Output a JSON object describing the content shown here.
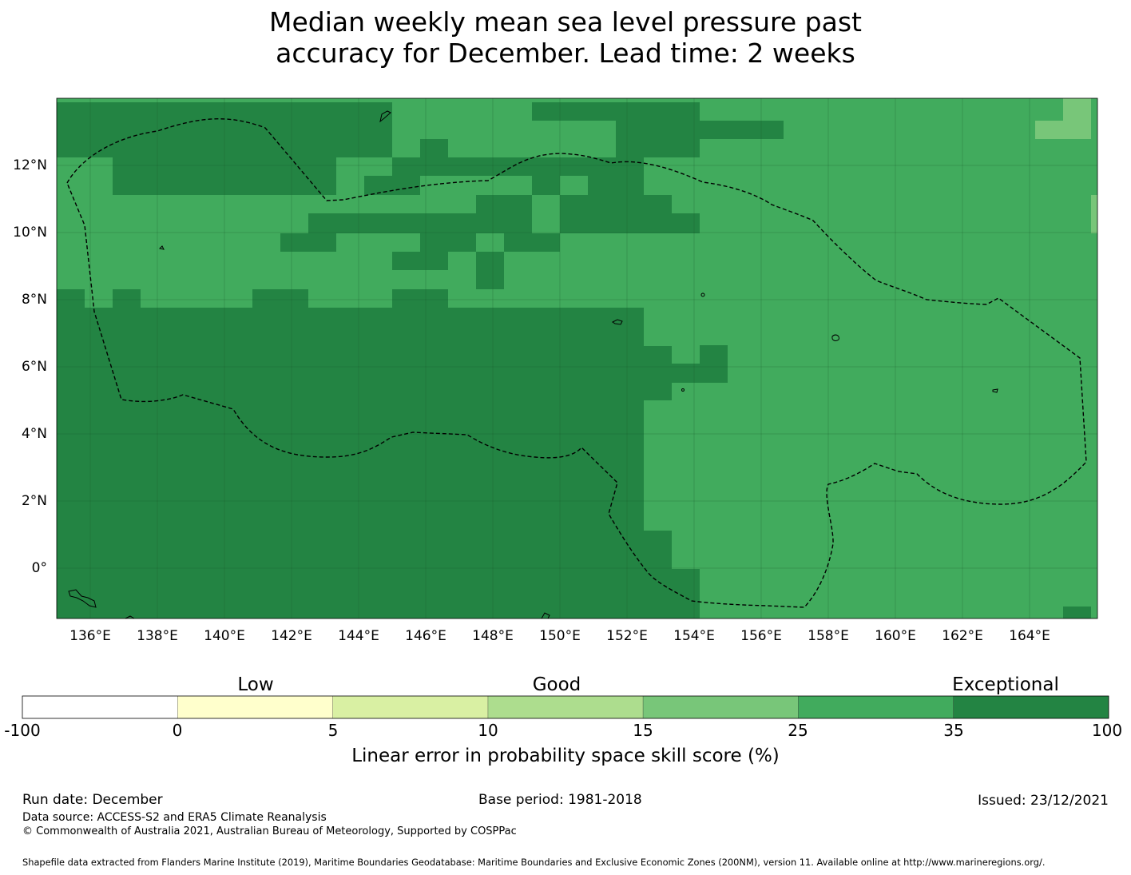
{
  "title_line1": "Median weekly mean sea level pressure past",
  "title_line2": "accuracy for December. Lead time: 2 weeks",
  "map": {
    "lon_range": [
      135,
      166
    ],
    "lat_range": [
      -1.5,
      14
    ],
    "lon_ticks": [
      "136°E",
      "138°E",
      "140°E",
      "142°E",
      "144°E",
      "146°E",
      "148°E",
      "150°E",
      "152°E",
      "154°E",
      "156°E",
      "158°E",
      "160°E",
      "162°E",
      "164°E"
    ],
    "lat_ticks": [
      "12°N",
      "10°N",
      "8°N",
      "6°N",
      "4°N",
      "2°N",
      "0°"
    ],
    "colors": {
      "exceptional": "#238443",
      "good_high": "#41ab5d",
      "good_mid": "#78c679"
    }
  },
  "colorbar": {
    "categories": [
      "Low",
      "Good",
      "Exceptional"
    ],
    "ticks": [
      "-100",
      "0",
      "5",
      "10",
      "15",
      "25",
      "35",
      "100"
    ],
    "colors": [
      "#ffffff",
      "#ffffcc",
      "#d9f0a3",
      "#addd8e",
      "#78c679",
      "#41ab5d",
      "#238443"
    ],
    "label": "Linear error in probability space skill score (%)"
  },
  "footer": {
    "run_date": "Run date: December",
    "base_period": "Base period: 1981-2018",
    "issued": "Issued: 23/12/2021",
    "data_source": "Data source: ACCESS-S2 and ERA5 Climate Reanalysis",
    "copyright": "© Commonwealth of Australia 2021, Australian Bureau of Meteorology, Supported by COSPPac",
    "shapefile": "Shapefile data extracted from Flanders Marine Institute (2019), Maritime Boundaries Geodatabase: Maritime Boundaries and Exclusive Economic Zones (200NM), version 11. Available online at http://www.marineregions.org/."
  }
}
